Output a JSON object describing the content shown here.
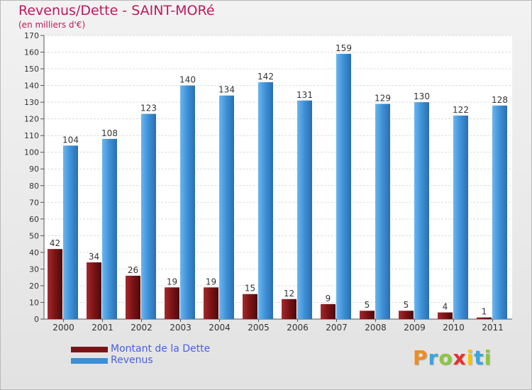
{
  "header": {
    "title": "Revenus/Dette - SAINT-MORé",
    "subtitle": "(en milliers d'€)"
  },
  "chart_data": {
    "type": "bar",
    "categories": [
      "2000",
      "2001",
      "2002",
      "2003",
      "2004",
      "2005",
      "2006",
      "2007",
      "2008",
      "2009",
      "2010",
      "2011"
    ],
    "series": [
      {
        "name": "Montant de la Dette",
        "color": "#7a1416",
        "values": [
          42,
          34,
          26,
          19,
          19,
          15,
          12,
          9,
          5,
          5,
          4,
          1
        ]
      },
      {
        "name": "Revenus",
        "color": "#3d8fd6",
        "values": [
          104,
          108,
          123,
          140,
          134,
          142,
          131,
          159,
          129,
          130,
          122,
          128
        ]
      }
    ],
    "ylim": [
      0,
      170
    ],
    "yticks": [
      0,
      10,
      20,
      30,
      40,
      50,
      60,
      70,
      80,
      90,
      100,
      110,
      120,
      130,
      140,
      150,
      160,
      170
    ],
    "grid": true,
    "legend": "bottom-left"
  },
  "legend": {
    "items": [
      {
        "label": "Montant de la Dette",
        "color": "#7a1416"
      },
      {
        "label": "Revenus",
        "color": "#3d8fd6"
      }
    ]
  },
  "logo": {
    "letters": [
      "P",
      "r",
      "o",
      "x",
      "i",
      "t",
      "i"
    ],
    "colors": [
      "#f08c1e",
      "#3aa5dc",
      "#8cc63f",
      "#e8302a",
      "#f5c400",
      "#3aa5dc",
      "#8cc63f"
    ]
  }
}
